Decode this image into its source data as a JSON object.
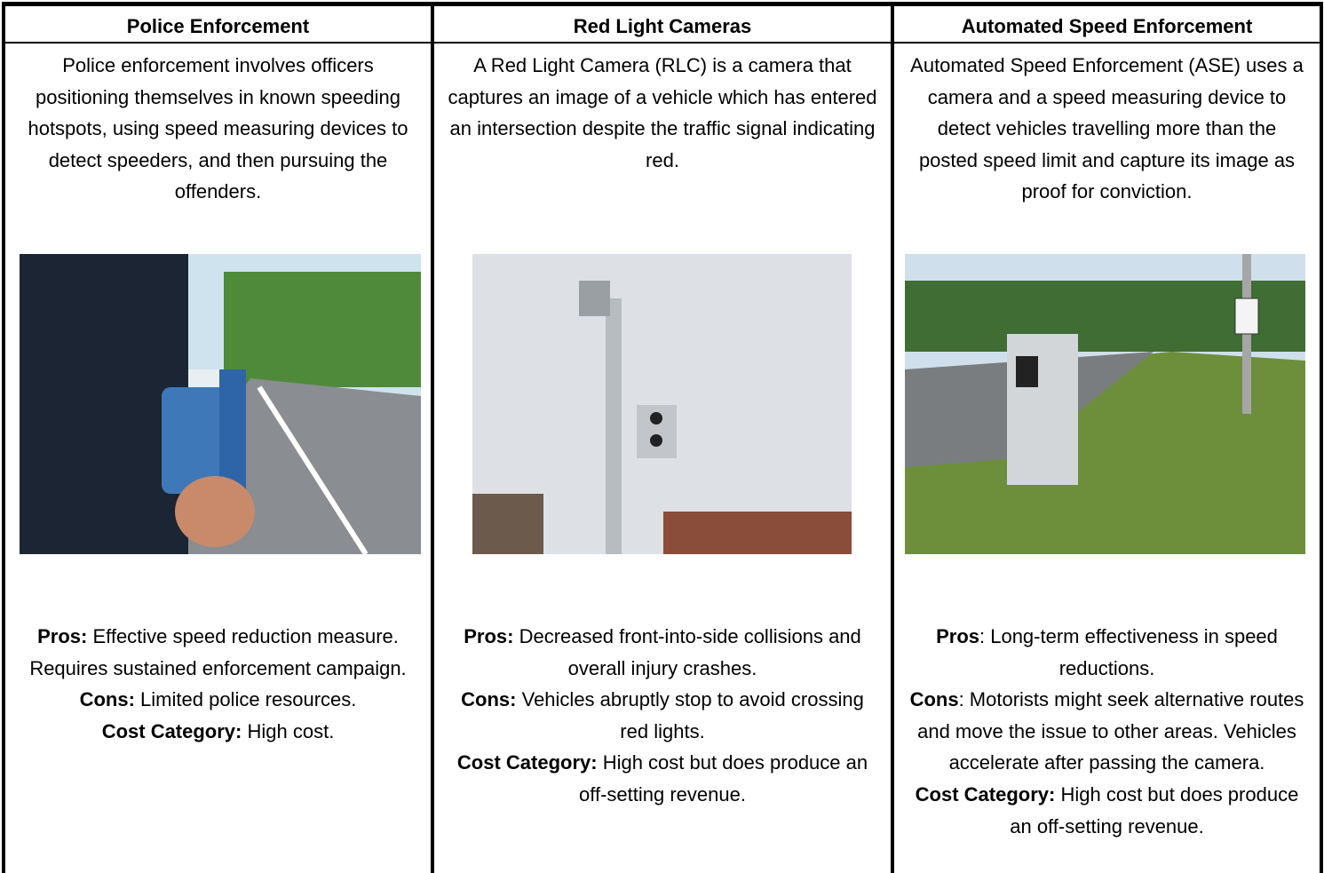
{
  "table": {
    "columns": [
      {
        "header": "Police Enforcement",
        "description": "Police enforcement involves officers positioning themselves in known speeding hotspots, using speed measuring devices to detect speeders, and then pursuing the offenders.",
        "details": [
          {
            "label": "Pros:",
            "text": " Effective speed reduction measure.  Requires sustained enforcement campaign."
          },
          {
            "label": "Cons:",
            "text": " Limited police resources."
          },
          {
            "label": "Cost Category:",
            "text": " High cost."
          }
        ]
      },
      {
        "header": "Red Light Cameras",
        "description": "A Red Light Camera (RLC) is a camera that captures an image of a vehicle which has entered an intersection despite the traffic signal indicating red.",
        "details": [
          {
            "label": "Pros:",
            "text": " Decreased front-into-side collisions and overall injury crashes."
          },
          {
            "label": "Cons:",
            "text": " Vehicles abruptly stop to avoid crossing red lights."
          },
          {
            "label": "Cost Category:",
            "text": " High cost but does produce an off-setting revenue."
          }
        ]
      },
      {
        "header": "Automated Speed Enforcement",
        "description": "Automated Speed Enforcement (ASE) uses a camera and a speed measuring device to detect vehicles travelling more than the posted speed limit and capture its image as proof for conviction.",
        "details": [
          {
            "label": "Pros",
            "text": ": Long-term effectiveness in speed reductions."
          },
          {
            "label": "Cons",
            "text": ": Motorists might seek alternative routes and move the issue to other areas. Vehicles accelerate after passing the camera."
          },
          {
            "label": "Cost Category:",
            "text": " High cost but does produce an off-setting revenue."
          }
        ]
      }
    ]
  }
}
